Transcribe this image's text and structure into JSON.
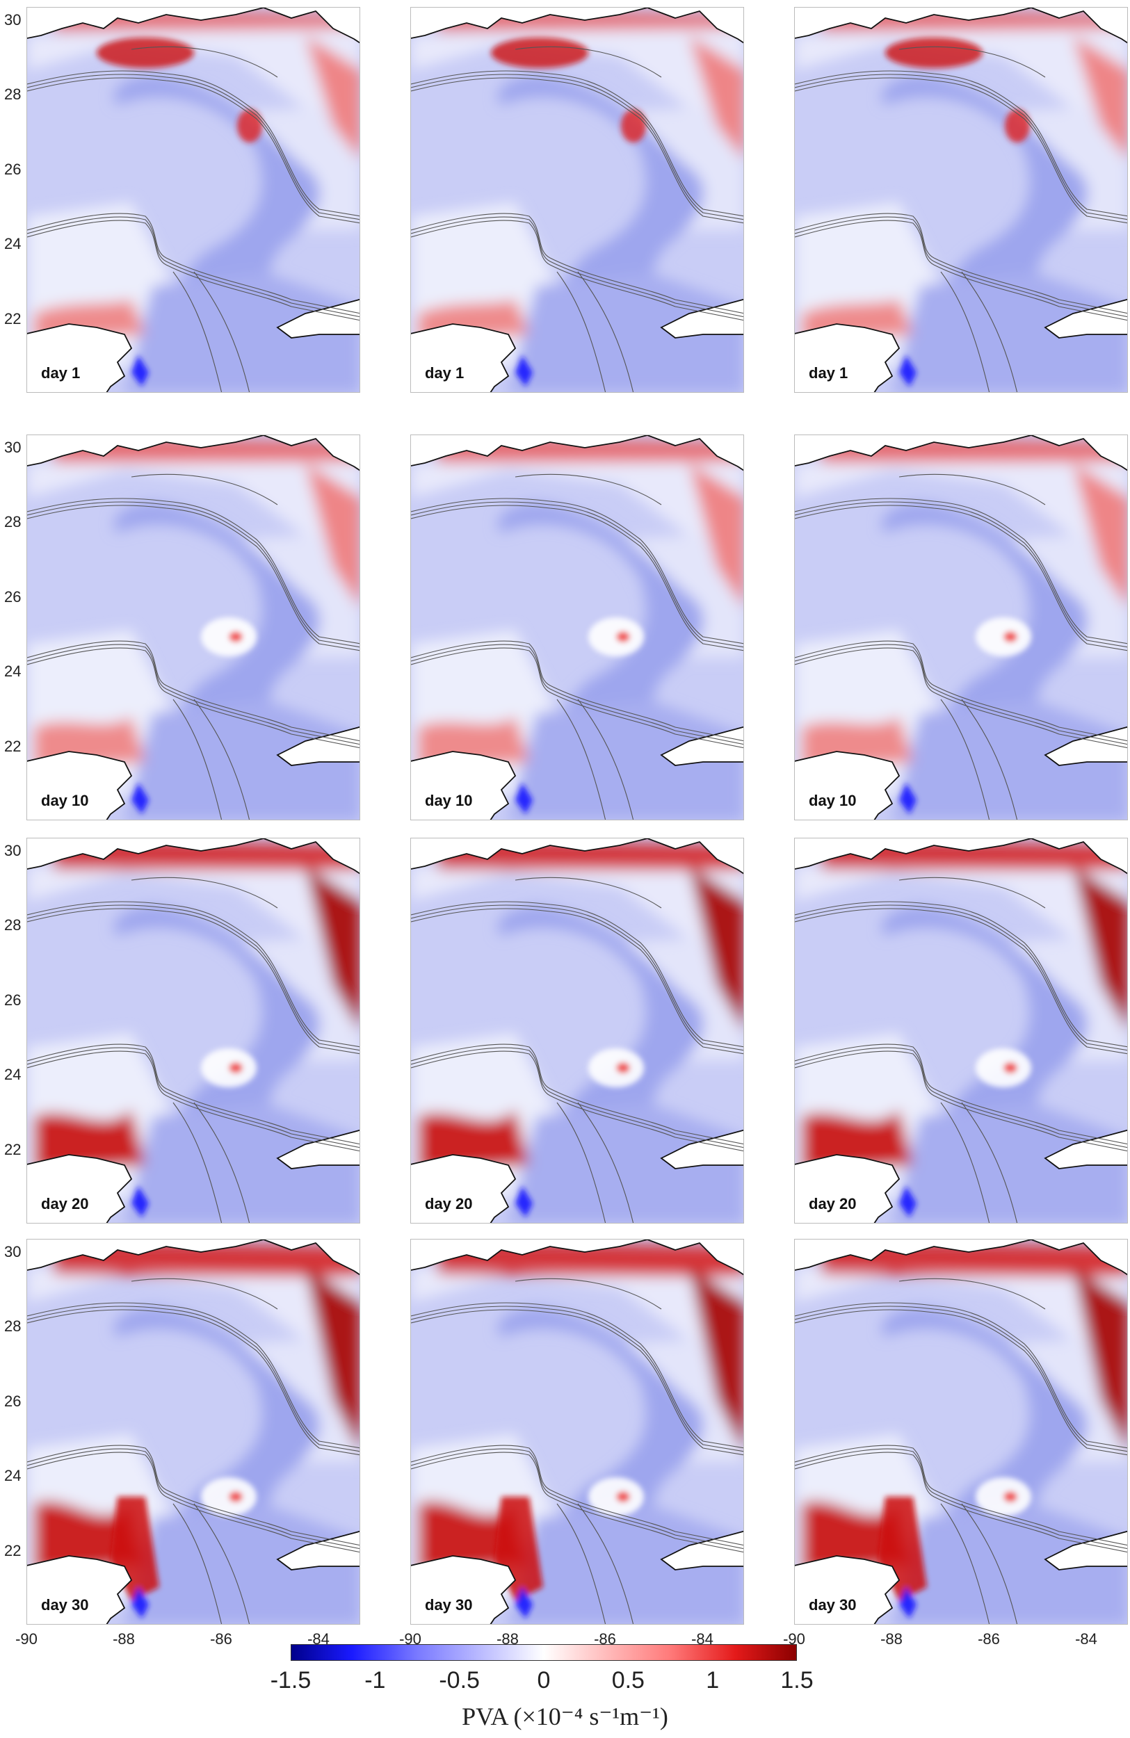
{
  "panels": [
    {
      "label": "day 1"
    },
    {
      "label": "day 1"
    },
    {
      "label": "day 1"
    },
    {
      "label": "day 10"
    },
    {
      "label": "day 10"
    },
    {
      "label": "day 10"
    },
    {
      "label": "day 20"
    },
    {
      "label": "day 20"
    },
    {
      "label": "day 20"
    },
    {
      "label": "day 30"
    },
    {
      "label": "day 30"
    },
    {
      "label": "day 30"
    }
  ],
  "y_ticks": [
    "30",
    "28",
    "26",
    "24",
    "22"
  ],
  "x_ticks": [
    "-90",
    "-88",
    "-86",
    "-84"
  ],
  "colorbar": {
    "ticks": [
      "-1.5",
      "-1",
      "-0.5",
      "0",
      "0.5",
      "1",
      "1.5"
    ],
    "label": "PVA (×10⁻⁴ s⁻¹m⁻¹)",
    "range": [
      -1.5,
      1.5
    ],
    "colors": {
      "min": "#00008b",
      "mid": "#ffffff",
      "max": "#8b0000"
    }
  },
  "map": {
    "land_color": "#ffffff",
    "coast_color": "#111111",
    "contour_color": "#555555"
  }
}
